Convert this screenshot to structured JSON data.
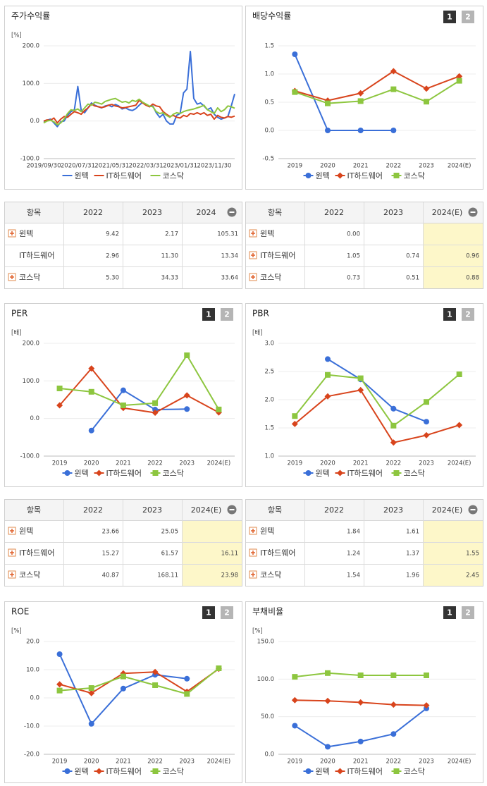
{
  "chart_data": [
    {
      "type": "line",
      "title": "주가수익률",
      "unit": "[%]",
      "categories": [
        "2019/09/30",
        null,
        null,
        null,
        null,
        null,
        null,
        null,
        null,
        null,
        "2020/07/31",
        null,
        null,
        null,
        null,
        null,
        null,
        null,
        null,
        null,
        "2021/05/31",
        null,
        null,
        null,
        null,
        null,
        null,
        null,
        null,
        null,
        "2022/03/31",
        null,
        null,
        null,
        null,
        null,
        null,
        null,
        null,
        null,
        "2023/01/31",
        null,
        null,
        null,
        null,
        null,
        null,
        null,
        null,
        null,
        "2023/11/30",
        null,
        null,
        null,
        null,
        null,
        null
      ],
      "ylim": [
        -100,
        200
      ],
      "yticks": [
        {
          "value": -100,
          "label": "-100.0"
        },
        {
          "value": 0,
          "label": "0.0"
        },
        {
          "value": 100,
          "label": "100.0"
        },
        {
          "value": 200,
          "label": "200.0"
        }
      ],
      "series": [
        {
          "name": "윈텍",
          "color": "#3a6fd8",
          "values": [
            -2,
            2,
            5,
            -5,
            -15,
            -2,
            0,
            15,
            25,
            30,
            92,
            28,
            22,
            35,
            48,
            42,
            38,
            35,
            40,
            42,
            38,
            44,
            40,
            32,
            35,
            30,
            28,
            33,
            42,
            50,
            44,
            38,
            40,
            22,
            10,
            18,
            0,
            -8,
            -8,
            15,
            20,
            75,
            85,
            185,
            60,
            45,
            48,
            40,
            30,
            35,
            18,
            10,
            5,
            8,
            12,
            40,
            72
          ]
        },
        {
          "name": "IT하드웨어",
          "color": "#d8441c",
          "values": [
            0,
            3,
            2,
            8,
            -5,
            5,
            12,
            10,
            18,
            25,
            22,
            18,
            28,
            35,
            45,
            40,
            38,
            36,
            38,
            42,
            44,
            40,
            38,
            35,
            36,
            38,
            40,
            42,
            55,
            48,
            42,
            38,
            45,
            40,
            38,
            25,
            18,
            12,
            15,
            10,
            8,
            15,
            12,
            20,
            18,
            22,
            18,
            22,
            15,
            18,
            5,
            15,
            10,
            8,
            12,
            10,
            13
          ]
        },
        {
          "name": "코스닥",
          "color": "#8dc63f",
          "values": [
            -5,
            0,
            2,
            -2,
            -10,
            -5,
            5,
            20,
            30,
            28,
            32,
            25,
            35,
            45,
            42,
            50,
            48,
            45,
            52,
            55,
            58,
            60,
            55,
            50,
            52,
            48,
            55,
            52,
            58,
            50,
            45,
            40,
            38,
            25,
            20,
            22,
            15,
            10,
            18,
            22,
            20,
            25,
            28,
            30,
            32,
            35,
            38,
            42,
            30,
            25,
            20,
            35,
            25,
            30,
            40,
            38,
            34
          ]
        }
      ]
    },
    {
      "type": "line",
      "title": "배당수익률",
      "tabs": [
        "1",
        "2"
      ],
      "categories": [
        "2019",
        "2020",
        "2021",
        "2022",
        "2023",
        "2024(E)"
      ],
      "ylim": [
        -0.5,
        1.5
      ],
      "yticks": [
        -0.5,
        {
          "value": 0,
          "label": "0.0"
        },
        0.5,
        {
          "value": 1,
          "label": "1.0"
        },
        1.5
      ],
      "series": [
        {
          "name": "윈텍",
          "color": "#3a6fd8",
          "marker": "circle",
          "values": [
            1.35,
            0.0,
            0.0,
            0.0,
            null,
            null
          ]
        },
        {
          "name": "IT하드웨어",
          "color": "#d8441c",
          "marker": "diamond",
          "values": [
            0.7,
            0.53,
            0.66,
            1.05,
            0.74,
            0.96
          ]
        },
        {
          "name": "코스닥",
          "color": "#8dc63f",
          "marker": "square",
          "values": [
            0.68,
            0.48,
            0.52,
            0.73,
            0.51,
            0.88
          ]
        }
      ]
    },
    {
      "type": "line",
      "title": "PER",
      "unit": "[배]",
      "tabs": [
        "1",
        "2"
      ],
      "categories": [
        "2019",
        "2020",
        "2021",
        "2022",
        "2023",
        "2024(E)"
      ],
      "ylim": [
        -100,
        200
      ],
      "yticks": [
        {
          "value": -100,
          "label": "-100.0"
        },
        {
          "value": 0,
          "label": "0.0"
        },
        {
          "value": 100,
          "label": "100.0"
        },
        {
          "value": 200,
          "label": "200.0"
        }
      ],
      "series": [
        {
          "name": "윈텍",
          "color": "#3a6fd8",
          "marker": "circle",
          "values": [
            null,
            -32,
            75,
            23.66,
            25.05,
            null
          ]
        },
        {
          "name": "IT하드웨어",
          "color": "#d8441c",
          "marker": "diamond",
          "values": [
            35,
            133,
            28,
            15.27,
            61.57,
            16.11
          ]
        },
        {
          "name": "코스닥",
          "color": "#8dc63f",
          "marker": "square",
          "values": [
            80,
            71,
            35,
            40.87,
            168.11,
            23.98
          ]
        }
      ]
    },
    {
      "type": "line",
      "title": "PBR",
      "unit": "[배]",
      "tabs": [
        "1",
        "2"
      ],
      "categories": [
        "2019",
        "2020",
        "2021",
        "2022",
        "2023",
        "2024(E)"
      ],
      "ylim": [
        1,
        3
      ],
      "yticks": [
        {
          "value": 1,
          "label": "1.0"
        },
        1.5,
        {
          "value": 2,
          "label": "2.0"
        },
        2.5,
        {
          "value": 3,
          "label": "3.0"
        }
      ],
      "series": [
        {
          "name": "윈텍",
          "color": "#3a6fd8",
          "marker": "circle",
          "values": [
            null,
            2.72,
            2.36,
            1.84,
            1.61,
            null
          ]
        },
        {
          "name": "IT하드웨어",
          "color": "#d8441c",
          "marker": "diamond",
          "values": [
            1.57,
            2.06,
            2.17,
            1.24,
            1.37,
            1.55
          ]
        },
        {
          "name": "코스닥",
          "color": "#8dc63f",
          "marker": "square",
          "values": [
            1.71,
            2.44,
            2.38,
            1.54,
            1.96,
            2.45
          ]
        }
      ]
    },
    {
      "type": "line",
      "title": "ROE",
      "unit": "[%]",
      "tabs": [
        "1",
        "2"
      ],
      "categories": [
        "2019",
        "2020",
        "2021",
        "2022",
        "2023",
        "2024(E)"
      ],
      "ylim": [
        -20,
        20
      ],
      "yticks": [
        {
          "value": -20,
          "label": "-20.0"
        },
        {
          "value": -10,
          "label": "-10.0"
        },
        {
          "value": 0,
          "label": "0.0"
        },
        {
          "value": 10,
          "label": "10.0"
        },
        {
          "value": 20,
          "label": "20.0"
        }
      ],
      "series": [
        {
          "name": "윈텍",
          "color": "#3a6fd8",
          "marker": "circle",
          "values": [
            15.5,
            -9.2,
            3.3,
            8.2,
            6.8,
            null
          ]
        },
        {
          "name": "IT하드웨어",
          "color": "#d8441c",
          "marker": "diamond",
          "values": [
            4.8,
            1.7,
            8.7,
            9.2,
            2.2,
            10.3
          ]
        },
        {
          "name": "코스닥",
          "color": "#8dc63f",
          "marker": "square",
          "values": [
            2.6,
            3.5,
            7.6,
            4.5,
            1.4,
            10.5
          ]
        }
      ]
    },
    {
      "type": "line",
      "title": "부채비율",
      "unit": "[%]",
      "tabs": [
        "1",
        "2"
      ],
      "categories": [
        "2019",
        "2020",
        "2021",
        "2022",
        "2023",
        "2024(E)"
      ],
      "ylim": [
        0,
        150
      ],
      "yticks": [
        {
          "value": 0,
          "label": "0.0"
        },
        {
          "value": 50,
          "label": "50.0"
        },
        {
          "value": 100,
          "label": "100.0"
        },
        {
          "value": 150,
          "label": "150.0"
        }
      ],
      "series": [
        {
          "name": "윈텍",
          "color": "#3a6fd8",
          "marker": "circle",
          "values": [
            38,
            10,
            17,
            27,
            61,
            null
          ]
        },
        {
          "name": "IT하드웨어",
          "color": "#d8441c",
          "marker": "diamond",
          "values": [
            72,
            71,
            69,
            66,
            65,
            null
          ]
        },
        {
          "name": "코스닥",
          "color": "#8dc63f",
          "marker": "square",
          "values": [
            103,
            108,
            105,
            105,
            105,
            null
          ]
        }
      ]
    }
  ],
  "tables": [
    {
      "header": [
        "항목",
        "2022",
        "2023",
        "2024"
      ],
      "rows": [
        [
          "윈텍",
          "9.42",
          "2.17",
          "105.31"
        ],
        [
          "IT하드웨어",
          "2.96",
          "11.30",
          "13.34"
        ],
        [
          "코스닥",
          "5.30",
          "34.33",
          "33.64"
        ]
      ]
    },
    {
      "header": [
        "항목",
        "2022",
        "2023",
        "2024(E)"
      ],
      "rows": [
        [
          "윈텍",
          "0.00",
          null,
          null
        ],
        [
          "IT하드웨어",
          "1.05",
          "0.74",
          "0.96"
        ],
        [
          "코스닥",
          "0.73",
          "0.51",
          "0.88"
        ]
      ]
    },
    {
      "header": [
        "항목",
        "2022",
        "2023",
        "2024(E)"
      ],
      "rows": [
        [
          "윈텍",
          "23.66",
          "25.05",
          null
        ],
        [
          "IT하드웨어",
          "15.27",
          "61.57",
          "16.11"
        ],
        [
          "코스닥",
          "40.87",
          "168.11",
          "23.98"
        ]
      ]
    },
    {
      "header": [
        "항목",
        "2022",
        "2023",
        "2024(E)"
      ],
      "rows": [
        [
          "윈텍",
          "1.84",
          "1.61",
          null
        ],
        [
          "IT하드웨어",
          "1.24",
          "1.37",
          "1.55"
        ],
        [
          "코스닥",
          "1.54",
          "1.96",
          "2.45"
        ]
      ]
    }
  ]
}
